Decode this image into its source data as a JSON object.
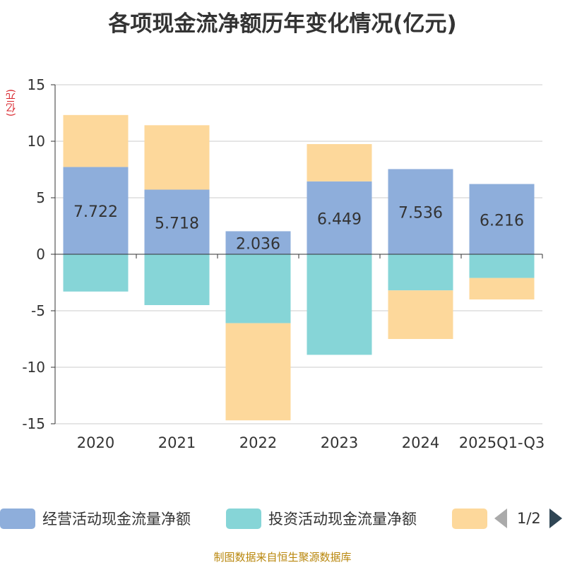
{
  "title": "各项现金流净额历年变化情况(亿元)",
  "unit_label": "(亿元)",
  "source": "制图数据来自恒生聚源数据库",
  "legend_page": "1/2",
  "colors": {
    "operating": "#8eaedb",
    "investing": "#86d5d7",
    "financing": "#fdd89b",
    "axis": "#333333",
    "grid": "#cccccc",
    "unit": "#d8232a",
    "source": "#b8860b"
  },
  "chart_data": {
    "type": "bar",
    "stacked": true,
    "categories": [
      "2020",
      "2021",
      "2022",
      "2023",
      "2024",
      "2025Q1-Q3"
    ],
    "ylim": [
      -15,
      15
    ],
    "yticks": [
      15,
      10,
      5,
      0,
      -5,
      -10,
      -15
    ],
    "grid": true,
    "legend_position": "bottom",
    "series": [
      {
        "name": "经营活动现金流量净额",
        "values": [
          7.722,
          5.718,
          2.036,
          6.449,
          7.536,
          6.216
        ],
        "labels": [
          "7.722",
          "5.718",
          "2.036",
          "6.449",
          "7.536",
          "6.216"
        ]
      },
      {
        "name": "投资活动现金流量净额",
        "values": [
          -3.3,
          -4.5,
          -6.1,
          -8.9,
          -3.2,
          -2.1
        ]
      },
      {
        "name": "",
        "values": [
          4.6,
          5.7,
          -8.6,
          3.3,
          -4.3,
          -1.9
        ]
      }
    ]
  }
}
